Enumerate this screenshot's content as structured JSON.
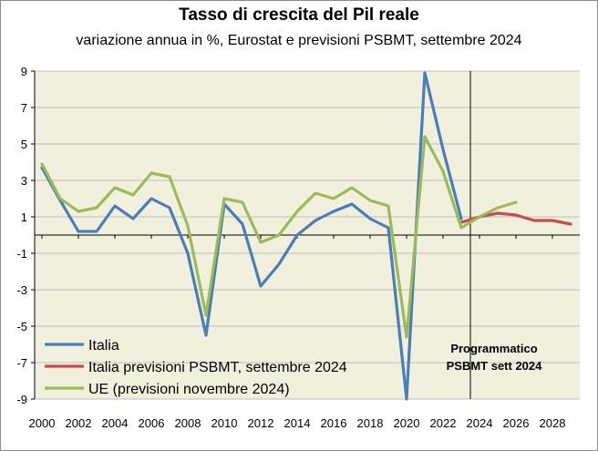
{
  "chart_data": {
    "type": "line",
    "title": "Tasso di crescita del Pil reale",
    "subtitle": "variazione annua in %, Eurostat e previsioni PSBMT, settembre 2024",
    "xlabel": "",
    "ylabel": "",
    "xlim": [
      2000,
      2029
    ],
    "ylim": [
      -9,
      9
    ],
    "yticks": [
      9,
      7,
      5,
      3,
      1,
      -1,
      -3,
      -5,
      -7,
      -9
    ],
    "xticks": [
      2000,
      2002,
      2004,
      2006,
      2008,
      2010,
      2012,
      2014,
      2016,
      2018,
      2020,
      2022,
      2024,
      2026,
      2028
    ],
    "grid": true,
    "legend_position": "bottom-left",
    "plot_background": "#f0f0dc",
    "series": [
      {
        "name": "Italia",
        "color": "#4a7ebb",
        "x": [
          2000,
          2001,
          2002,
          2003,
          2004,
          2005,
          2006,
          2007,
          2008,
          2009,
          2010,
          2011,
          2012,
          2013,
          2014,
          2015,
          2016,
          2017,
          2018,
          2019,
          2020,
          2021,
          2022,
          2023
        ],
        "values": [
          3.7,
          1.9,
          0.2,
          0.2,
          1.6,
          0.9,
          2.0,
          1.5,
          -1.0,
          -5.5,
          1.7,
          0.6,
          -2.8,
          -1.6,
          0.0,
          0.8,
          1.3,
          1.7,
          0.9,
          0.4,
          -9.0,
          8.9,
          4.7,
          0.9
        ]
      },
      {
        "name": "Italia previsioni PSBMT, settembre 2024",
        "color": "#c0504d",
        "x": [
          2023,
          2024,
          2025,
          2026,
          2027,
          2028,
          2029
        ],
        "values": [
          0.7,
          1.0,
          1.2,
          1.1,
          0.8,
          0.8,
          0.6
        ]
      },
      {
        "name": "UE (previsioni novembre 2024)",
        "color": "#9bbb59",
        "x": [
          2000,
          2001,
          2002,
          2003,
          2004,
          2005,
          2006,
          2007,
          2008,
          2009,
          2010,
          2011,
          2012,
          2013,
          2014,
          2015,
          2016,
          2017,
          2018,
          2019,
          2020,
          2021,
          2022,
          2023,
          2024,
          2025,
          2026
        ],
        "values": [
          3.9,
          2.0,
          1.3,
          1.5,
          2.6,
          2.2,
          3.4,
          3.2,
          0.5,
          -4.4,
          2.0,
          1.8,
          -0.4,
          0.0,
          1.3,
          2.3,
          2.0,
          2.6,
          1.9,
          1.6,
          -5.6,
          5.4,
          3.5,
          0.4,
          1.0,
          1.5,
          1.8
        ]
      }
    ],
    "annotations": [
      {
        "label": "Programmatico",
        "x": 2024.8
      },
      {
        "label": "PSBMT sett 2024",
        "x": 2024.8
      }
    ],
    "divider_x": 2023.5
  }
}
